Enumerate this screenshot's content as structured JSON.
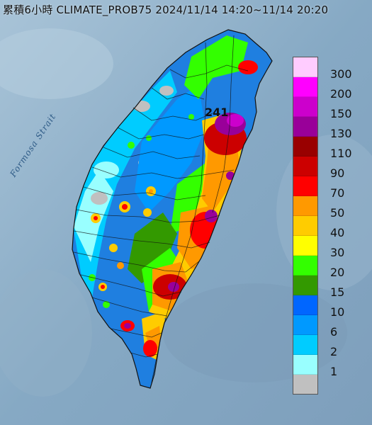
{
  "title": "累積6小時 CLIMATE_PROB75 2024/11/14 14:20~11/14 20:20",
  "strait_label": "Formosa Strait",
  "peak_value": "241",
  "legend": [
    {
      "label": "300",
      "color": "#ffccff"
    },
    {
      "label": "200",
      "color": "#ff00ff"
    },
    {
      "label": "150",
      "color": "#cc00cc"
    },
    {
      "label": "130",
      "color": "#990099"
    },
    {
      "label": "110",
      "color": "#990000"
    },
    {
      "label": "90",
      "color": "#cc0000"
    },
    {
      "label": "70",
      "color": "#ff0000"
    },
    {
      "label": "50",
      "color": "#ff9900"
    },
    {
      "label": "40",
      "color": "#ffcc00"
    },
    {
      "label": "30",
      "color": "#ffff00"
    },
    {
      "label": "20",
      "color": "#33ff00"
    },
    {
      "label": "15",
      "color": "#339900"
    },
    {
      "label": "10",
      "color": "#0066ff"
    },
    {
      "label": "6",
      "color": "#0099ff"
    },
    {
      "label": "2",
      "color": "#00ccff"
    },
    {
      "label": "1",
      "color": "#99ffff"
    },
    {
      "label": "",
      "color": "#c0c0c0"
    }
  ]
}
